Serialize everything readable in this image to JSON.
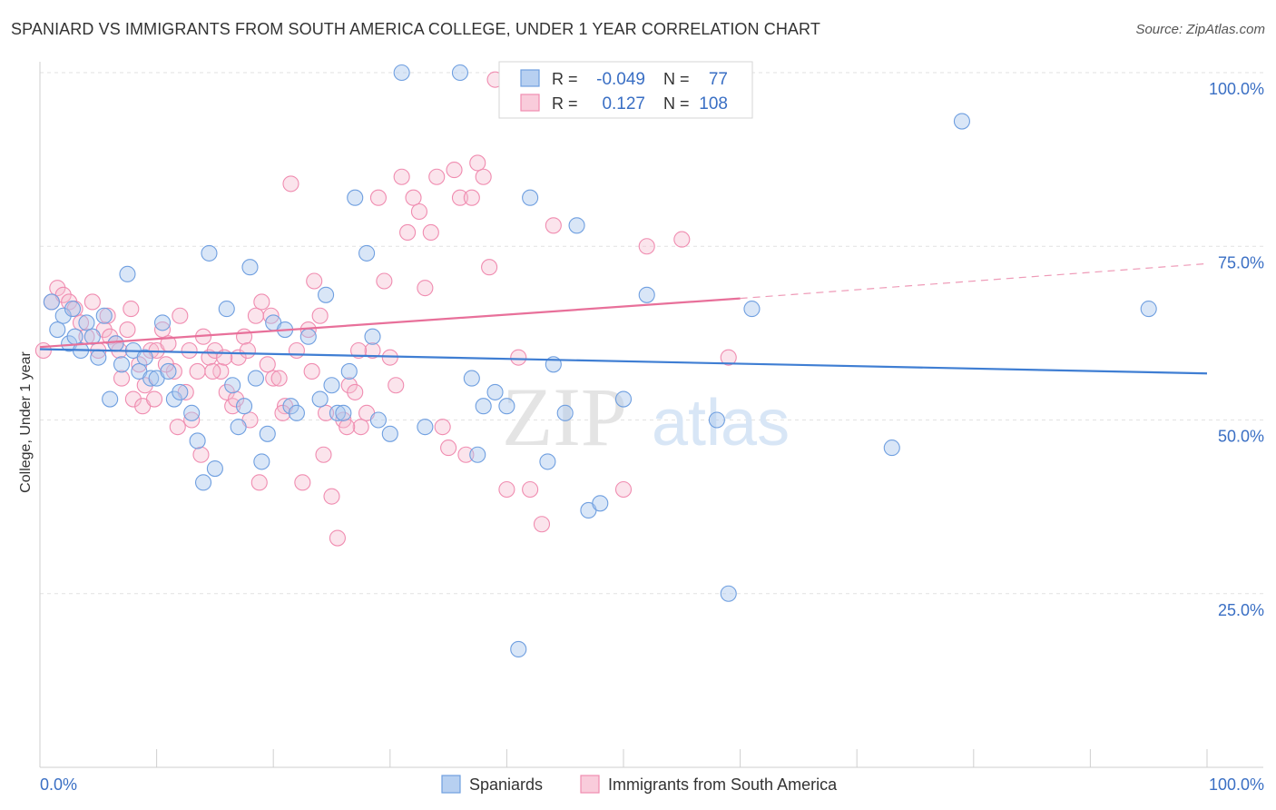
{
  "title": "SPANIARD VS IMMIGRANTS FROM SOUTH AMERICA COLLEGE, UNDER 1 YEAR CORRELATION CHART",
  "source": "Source: ZipAtlas.com",
  "watermark": {
    "zip": "ZIP",
    "atlas": "atlas"
  },
  "legend_box": {
    "rows": [
      {
        "r_label": "R =",
        "r_value": "-0.049",
        "n_label": "N =",
        "n_value": "77",
        "color": "#6f9fe0"
      },
      {
        "r_label": "R =",
        "r_value": "0.127",
        "n_label": "N =",
        "n_value": "108",
        "color": "#f08cb0"
      }
    ]
  },
  "colors": {
    "blue": "#4a86d4",
    "blue_fill": "#aac8ee",
    "pink": "#e8709a",
    "pink_fill": "#f6bcd0",
    "value_text": "#3a6fc4"
  },
  "chart_data": {
    "type": "scatter",
    "xlabel": "",
    "ylabel": "College, Under 1 year",
    "xlim": [
      0,
      100
    ],
    "ylim": [
      0,
      100
    ],
    "x_tick_labels": [
      "0.0%",
      "100.0%"
    ],
    "y_tick_labels": [
      "25.0%",
      "50.0%",
      "75.0%",
      "100.0%"
    ],
    "y_ticks": [
      25,
      50,
      75,
      100
    ],
    "grid": true,
    "legend_position": "bottom",
    "series": [
      {
        "name": "Spaniards",
        "color": "#4a86d4",
        "trend": {
          "x": [
            0,
            100
          ],
          "y": [
            60.2,
            56.7
          ],
          "dashed_from": null
        },
        "points": [
          [
            1,
            67
          ],
          [
            1.5,
            63
          ],
          [
            2,
            65
          ],
          [
            2.5,
            61
          ],
          [
            2.8,
            66
          ],
          [
            3,
            62
          ],
          [
            3.5,
            60
          ],
          [
            4,
            64
          ],
          [
            4.5,
            62
          ],
          [
            5,
            59
          ],
          [
            5.5,
            65
          ],
          [
            6,
            53
          ],
          [
            6.5,
            61
          ],
          [
            7,
            58
          ],
          [
            7.5,
            71
          ],
          [
            8,
            60
          ],
          [
            8.5,
            57
          ],
          [
            9,
            59
          ],
          [
            9.5,
            56
          ],
          [
            10,
            56
          ],
          [
            10.5,
            64
          ],
          [
            11,
            57
          ],
          [
            11.5,
            53
          ],
          [
            12,
            54
          ],
          [
            13,
            51
          ],
          [
            13.5,
            47
          ],
          [
            14,
            41
          ],
          [
            14.5,
            74
          ],
          [
            15,
            43
          ],
          [
            16,
            66
          ],
          [
            16.5,
            55
          ],
          [
            17,
            49
          ],
          [
            17.5,
            52
          ],
          [
            18,
            72
          ],
          [
            18.5,
            56
          ],
          [
            19,
            44
          ],
          [
            19.5,
            48
          ],
          [
            20,
            64
          ],
          [
            21,
            63
          ],
          [
            21.5,
            52
          ],
          [
            22,
            51
          ],
          [
            23,
            62
          ],
          [
            24,
            53
          ],
          [
            24.5,
            68
          ],
          [
            25,
            55
          ],
          [
            25.5,
            51
          ],
          [
            26,
            51
          ],
          [
            26.5,
            57
          ],
          [
            27,
            82
          ],
          [
            28,
            74
          ],
          [
            28.5,
            62
          ],
          [
            29,
            50
          ],
          [
            30,
            48
          ],
          [
            31,
            100
          ],
          [
            33,
            49
          ],
          [
            36,
            100
          ],
          [
            37,
            56
          ],
          [
            37.5,
            45
          ],
          [
            38,
            52
          ],
          [
            39,
            54
          ],
          [
            40,
            52
          ],
          [
            41,
            17
          ],
          [
            42,
            82
          ],
          [
            43.5,
            44
          ],
          [
            44,
            58
          ],
          [
            45,
            51
          ],
          [
            46,
            78
          ],
          [
            47,
            37
          ],
          [
            48,
            38
          ],
          [
            50,
            53
          ],
          [
            52,
            68
          ],
          [
            58,
            50
          ],
          [
            59,
            25
          ],
          [
            61,
            66
          ],
          [
            73,
            46
          ],
          [
            79,
            93
          ],
          [
            95,
            66
          ]
        ]
      },
      {
        "name": "Immigrants from South America",
        "color": "#e8709a",
        "trend": {
          "x": [
            0,
            60,
            100
          ],
          "y": [
            60.5,
            67.5,
            72.5
          ],
          "dashed_from": 60
        },
        "points": [
          [
            0.3,
            60
          ],
          [
            1,
            67
          ],
          [
            1.5,
            69
          ],
          [
            2,
            68
          ],
          [
            2.5,
            67
          ],
          [
            3,
            66
          ],
          [
            3.5,
            64
          ],
          [
            4,
            62
          ],
          [
            4.5,
            67
          ],
          [
            5,
            60
          ],
          [
            5.5,
            63
          ],
          [
            6,
            62
          ],
          [
            6.5,
            61
          ],
          [
            7,
            56
          ],
          [
            7.5,
            63
          ],
          [
            8,
            53
          ],
          [
            8.5,
            58
          ],
          [
            9,
            55
          ],
          [
            9.5,
            60
          ],
          [
            10,
            60
          ],
          [
            10.5,
            63
          ],
          [
            11,
            61
          ],
          [
            11.5,
            57
          ],
          [
            12,
            65
          ],
          [
            12.5,
            54
          ],
          [
            13,
            50
          ],
          [
            13.5,
            57
          ],
          [
            14,
            62
          ],
          [
            14.5,
            59
          ],
          [
            15,
            60
          ],
          [
            15.5,
            57
          ],
          [
            16,
            54
          ],
          [
            16.5,
            52
          ],
          [
            17,
            59
          ],
          [
            17.5,
            62
          ],
          [
            18,
            50
          ],
          [
            18.5,
            65
          ],
          [
            19,
            67
          ],
          [
            19.5,
            58
          ],
          [
            20,
            56
          ],
          [
            20.5,
            56
          ],
          [
            21,
            52
          ],
          [
            21.5,
            84
          ],
          [
            22,
            60
          ],
          [
            22.5,
            41
          ],
          [
            23,
            63
          ],
          [
            23.5,
            70
          ],
          [
            24,
            65
          ],
          [
            24.5,
            51
          ],
          [
            25,
            39
          ],
          [
            25.5,
            33
          ],
          [
            26,
            50
          ],
          [
            26.5,
            55
          ],
          [
            27,
            54
          ],
          [
            27.5,
            49
          ],
          [
            28,
            51
          ],
          [
            28.5,
            60
          ],
          [
            29,
            82
          ],
          [
            29.5,
            70
          ],
          [
            30,
            59
          ],
          [
            30.5,
            55
          ],
          [
            31,
            85
          ],
          [
            31.5,
            77
          ],
          [
            32,
            82
          ],
          [
            32.5,
            80
          ],
          [
            33,
            69
          ],
          [
            33.5,
            77
          ],
          [
            34,
            85
          ],
          [
            34.5,
            49
          ],
          [
            35,
            46
          ],
          [
            35.5,
            86
          ],
          [
            36,
            82
          ],
          [
            36.5,
            45
          ],
          [
            37,
            82
          ],
          [
            37.5,
            87
          ],
          [
            38,
            85
          ],
          [
            38.5,
            72
          ],
          [
            39,
            99
          ],
          [
            40,
            40
          ],
          [
            41,
            59
          ],
          [
            42,
            40
          ],
          [
            43,
            35
          ],
          [
            44,
            78
          ],
          [
            50,
            40
          ],
          [
            52,
            75
          ],
          [
            55,
            76
          ],
          [
            59,
            59
          ],
          [
            5.8,
            65
          ],
          [
            6.8,
            60
          ],
          [
            7.8,
            66
          ],
          [
            8.8,
            52
          ],
          [
            9.8,
            53
          ],
          [
            10.8,
            58
          ],
          [
            11.8,
            49
          ],
          [
            12.8,
            60
          ],
          [
            13.8,
            45
          ],
          [
            14.8,
            57
          ],
          [
            15.8,
            59
          ],
          [
            16.8,
            53
          ],
          [
            17.8,
            60
          ],
          [
            18.8,
            41
          ],
          [
            19.8,
            65
          ],
          [
            20.8,
            51
          ],
          [
            23.3,
            57
          ],
          [
            24.3,
            45
          ],
          [
            26.3,
            49
          ],
          [
            27.3,
            60
          ]
        ]
      }
    ]
  }
}
